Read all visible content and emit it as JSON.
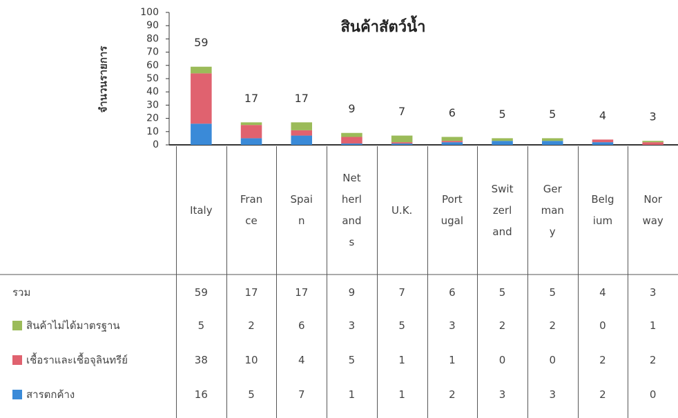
{
  "chart_data": {
    "type": "stacked_bar",
    "title": "สินค้าสัตว์น้ำ",
    "y_label": "จำนวนรายการ",
    "categories": [
      "Italy",
      "Fran\nce",
      "Spai\nn",
      "Net\nherl\nand\ns",
      "U.K.",
      "Port\nugal",
      "Swit\nzerl\nand",
      "Ger\nman\ny",
      "Belg\nium",
      "Nor\nway"
    ],
    "ylim": [
      0,
      100
    ],
    "yticks": [
      0,
      10,
      20,
      30,
      40,
      50,
      60,
      70,
      80,
      90,
      100
    ],
    "totals": {
      "name": "รวม",
      "values": [
        59,
        17,
        17,
        9,
        7,
        6,
        5,
        5,
        4,
        3
      ]
    },
    "series": [
      {
        "name": "สินค้าไม่ได้มาตรฐาน",
        "color": "#9bbb59",
        "values": [
          5,
          2,
          6,
          3,
          5,
          3,
          2,
          2,
          0,
          1
        ]
      },
      {
        "name": "เชื้อราและเชื้อจุลินทรีย์",
        "color": "#e0626f",
        "values": [
          38,
          10,
          4,
          5,
          1,
          1,
          0,
          0,
          2,
          2
        ]
      },
      {
        "name": "สารตกค้าง",
        "color": "#3a8ad8",
        "values": [
          16,
          5,
          7,
          1,
          1,
          2,
          3,
          3,
          2,
          0
        ]
      }
    ]
  }
}
